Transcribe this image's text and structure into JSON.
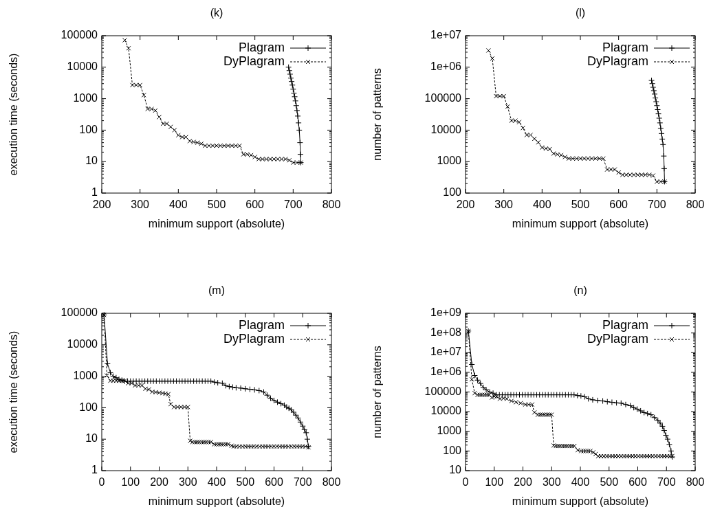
{
  "chart_data": [
    {
      "type": "line",
      "title": "(k)",
      "xlabel": "minimum support (absolute)",
      "ylabel": "execution time (seconds)",
      "xlim": [
        200,
        800
      ],
      "xticks": [
        200,
        300,
        400,
        500,
        600,
        700,
        800
      ],
      "ylim": [
        1,
        100000
      ],
      "yticks": [
        1,
        10,
        100,
        1000,
        10000,
        100000
      ],
      "log": "y",
      "legend": "top right",
      "marker": "cross",
      "series": [
        {
          "name": "Plagram",
          "color": "#000000",
          "line_style": "solid",
          "x": [
            688,
            690,
            692,
            694,
            696,
            698,
            700,
            702,
            704,
            706,
            708,
            710,
            712,
            714,
            716,
            718,
            719,
            720
          ],
          "values": [
            10000,
            7800,
            6000,
            4500,
            3500,
            2700,
            2000,
            1500,
            1150,
            850,
            600,
            420,
            280,
            170,
            100,
            40,
            17,
            9.3
          ]
        },
        {
          "name": "DyPlagram",
          "color": "#000000",
          "line_style": "dashed",
          "x": [
            260,
            270,
            280,
            290,
            300,
            310,
            320,
            330,
            340,
            350,
            360,
            370,
            380,
            390,
            400,
            410,
            420,
            430,
            440,
            450,
            460,
            470,
            480,
            490,
            500,
            510,
            520,
            530,
            540,
            550,
            560,
            570,
            580,
            590,
            600,
            610,
            620,
            630,
            640,
            650,
            660,
            670,
            680,
            690,
            700,
            710,
            720
          ],
          "values": [
            72000,
            40000,
            2700,
            2700,
            2700,
            1300,
            470,
            470,
            420,
            260,
            160,
            160,
            127,
            100,
            69,
            60,
            60,
            45,
            42,
            40,
            37,
            32,
            32,
            32,
            32,
            32,
            32,
            32,
            32,
            32,
            32,
            17,
            17,
            16,
            14,
            12,
            12,
            12,
            12,
            12,
            12,
            12,
            12,
            11,
            9.3,
            9.3,
            9.3
          ]
        }
      ]
    },
    {
      "type": "line",
      "title": "(l)",
      "xlabel": "minimum support (absolute)",
      "ylabel": "number of patterns",
      "xlim": [
        200,
        800
      ],
      "xticks": [
        200,
        300,
        400,
        500,
        600,
        700,
        800
      ],
      "ylim": [
        100,
        10000000
      ],
      "yticks": [
        100,
        1000,
        10000,
        100000,
        {
          "value": 1000000,
          "label": "1e+06"
        },
        {
          "value": 10000000,
          "label": "1e+07"
        }
      ],
      "log": "y",
      "legend": "top right",
      "marker": "cross",
      "series": [
        {
          "name": "Plagram",
          "color": "#000000",
          "line_style": "solid",
          "x": [
            686,
            688,
            690,
            692,
            694,
            696,
            698,
            700,
            702,
            704,
            706,
            708,
            710,
            712,
            714,
            716,
            718,
            719,
            720
          ],
          "values": [
            380000,
            300000,
            230000,
            180000,
            140000,
            105000,
            80000,
            60000,
            45000,
            33000,
            24000,
            17000,
            11500,
            7800,
            5200,
            3500,
            1500,
            600,
            230
          ]
        },
        {
          "name": "DyPlagram",
          "color": "#000000",
          "line_style": "dashed",
          "x": [
            260,
            270,
            280,
            290,
            300,
            310,
            320,
            330,
            340,
            350,
            360,
            370,
            380,
            390,
            400,
            410,
            420,
            430,
            440,
            450,
            460,
            470,
            480,
            490,
            500,
            510,
            520,
            530,
            540,
            550,
            560,
            570,
            580,
            590,
            600,
            610,
            620,
            630,
            640,
            650,
            660,
            670,
            680,
            690,
            700,
            710,
            720
          ],
          "values": [
            3400000,
            1900000,
            120000,
            120000,
            120000,
            56000,
            20000,
            20000,
            18000,
            11700,
            7000,
            7000,
            5300,
            4100,
            2800,
            2600,
            2500,
            1800,
            1700,
            1600,
            1400,
            1250,
            1250,
            1250,
            1250,
            1250,
            1250,
            1250,
            1250,
            1250,
            1250,
            560,
            560,
            560,
            450,
            380,
            380,
            380,
            380,
            380,
            380,
            380,
            380,
            360,
            230,
            230,
            230
          ]
        }
      ]
    },
    {
      "type": "line",
      "title": "(m)",
      "xlabel": "minimum support (absolute)",
      "ylabel": "execution time (seconds)",
      "xlim": [
        0,
        800
      ],
      "xticks": [
        0,
        100,
        200,
        300,
        400,
        500,
        600,
        700,
        800
      ],
      "ylim": [
        1,
        100000
      ],
      "yticks": [
        1,
        10,
        100,
        1000,
        10000,
        100000
      ],
      "log": "y",
      "legend": "top right",
      "marker": "cross",
      "series": [
        {
          "name": "Plagram",
          "color": "#000000",
          "line_style": "solid",
          "x": [
            8,
            20,
            30,
            40,
            50,
            60,
            70,
            80,
            90,
            100,
            110,
            120,
            130,
            140,
            150,
            160,
            170,
            180,
            190,
            200,
            210,
            220,
            230,
            240,
            250,
            260,
            270,
            280,
            290,
            300,
            310,
            320,
            330,
            340,
            350,
            360,
            370,
            380,
            392,
            404,
            420,
            432,
            444,
            456,
            468,
            484,
            500,
            516,
            532,
            548,
            564,
            576,
            588,
            600,
            612,
            624,
            636,
            644,
            652,
            660,
            668,
            676,
            684,
            692,
            700,
            706,
            712,
            716,
            720
          ],
          "values": [
            89000,
            2500,
            1300,
            1000,
            900,
            800,
            750,
            700,
            700,
            700,
            700,
            700,
            700,
            700,
            700,
            700,
            700,
            700,
            700,
            700,
            700,
            700,
            700,
            700,
            700,
            700,
            700,
            700,
            700,
            700,
            700,
            700,
            700,
            700,
            700,
            700,
            700,
            700,
            650,
            620,
            600,
            500,
            470,
            450,
            430,
            420,
            400,
            385,
            370,
            350,
            315,
            250,
            200,
            170,
            150,
            135,
            120,
            105,
            96,
            85,
            72,
            58,
            47,
            35,
            26,
            20,
            16,
            10,
            5.9
          ]
        },
        {
          "name": "DyPlagram",
          "color": "#000000",
          "line_style": "dashed",
          "x": [
            8,
            18,
            30,
            40,
            50,
            60,
            70,
            80,
            92,
            104,
            116,
            128,
            140,
            152,
            164,
            176,
            188,
            200,
            212,
            222,
            232,
            240,
            252,
            264,
            276,
            288,
            300,
            308,
            316,
            324,
            332,
            340,
            348,
            356,
            364,
            372,
            380,
            392,
            400,
            408,
            416,
            424,
            432,
            440,
            452,
            460,
            470,
            480,
            490,
            500,
            510,
            520,
            530,
            540,
            550,
            560,
            570,
            580,
            590,
            600,
            610,
            620,
            630,
            640,
            650,
            660,
            670,
            680,
            690,
            700,
            710,
            720
          ],
          "values": [
            89000,
            1050,
            720,
            720,
            720,
            720,
            720,
            720,
            600,
            600,
            510,
            510,
            510,
            400,
            380,
            320,
            310,
            300,
            290,
            280,
            270,
            130,
            105,
            105,
            105,
            105,
            105,
            8.9,
            8.1,
            8.1,
            8.1,
            8.1,
            8.1,
            8.1,
            8.1,
            8.1,
            8.1,
            6.9,
            6.9,
            6.9,
            6.9,
            6.9,
            6.9,
            6.9,
            6.2,
            5.9,
            5.9,
            5.9,
            5.9,
            5.9,
            5.9,
            5.9,
            5.9,
            5.9,
            5.9,
            5.9,
            5.9,
            5.9,
            5.9,
            5.9,
            5.9,
            5.9,
            5.9,
            5.9,
            5.9,
            5.9,
            5.9,
            5.9,
            5.9,
            5.9,
            5.9,
            5.5
          ]
        }
      ]
    },
    {
      "type": "line",
      "title": "(n)",
      "xlabel": "minimum support (absolute)",
      "ylabel": "number of patterns",
      "xlim": [
        0,
        800
      ],
      "xticks": [
        0,
        100,
        200,
        300,
        400,
        500,
        600,
        700,
        800
      ],
      "ylim": [
        10,
        1000000000
      ],
      "yticks": [
        10,
        100,
        1000,
        10000,
        100000,
        {
          "value": 1000000,
          "label": "1e+06"
        },
        {
          "value": 10000000,
          "label": "1e+07"
        },
        {
          "value": 100000000,
          "label": "1e+08"
        },
        {
          "value": 1000000000,
          "label": "1e+09"
        }
      ],
      "log": "y",
      "legend": "top right",
      "marker": "cross",
      "series": [
        {
          "name": "Plagram",
          "color": "#000000",
          "line_style": "solid",
          "x": [
            10,
            22,
            32,
            42,
            52,
            62,
            72,
            84,
            96,
            108,
            118,
            128,
            138,
            148,
            158,
            168,
            178,
            188,
            198,
            208,
            218,
            228,
            238,
            248,
            258,
            268,
            278,
            288,
            298,
            308,
            318,
            328,
            338,
            348,
            358,
            368,
            378,
            390,
            402,
            415,
            428,
            443,
            460,
            478,
            494,
            510,
            526,
            542,
            558,
            574,
            586,
            598,
            610,
            622,
            634,
            646,
            658,
            670,
            678,
            686,
            692,
            698,
            704,
            710,
            716,
            720
          ],
          "values": [
            125000000,
            2500000,
            690000,
            400000,
            270000,
            170000,
            130000,
            100000,
            87000,
            72000,
            72000,
            72000,
            72000,
            72000,
            72000,
            72000,
            72000,
            72000,
            72000,
            72000,
            72000,
            72000,
            72000,
            72000,
            72000,
            72000,
            72000,
            72000,
            72000,
            72000,
            72000,
            72000,
            72000,
            72000,
            72000,
            72000,
            72000,
            66000,
            63000,
            57000,
            45000,
            40000,
            37000,
            35000,
            32000,
            30000,
            28000,
            27000,
            23000,
            20000,
            16000,
            13500,
            11000,
            9000,
            8000,
            7000,
            5000,
            3600,
            2600,
            1800,
            1100,
            630,
            400,
            215,
            100,
            50
          ]
        },
        {
          "name": "DyPlagram",
          "color": "#000000",
          "line_style": "dashed",
          "x": [
            10,
            22,
            32,
            42,
            50,
            58,
            66,
            74,
            82,
            92,
            100,
            108,
            120,
            132,
            144,
            160,
            176,
            192,
            208,
            220,
            232,
            240,
            252,
            260,
            268,
            276,
            284,
            292,
            300,
            307,
            315,
            323,
            331,
            339,
            347,
            355,
            363,
            371,
            379,
            391,
            403,
            411,
            419,
            427,
            435,
            445,
            453,
            462,
            472,
            482,
            492,
            502,
            512,
            522,
            532,
            542,
            552,
            562,
            572,
            582,
            592,
            602,
            612,
            622,
            632,
            642,
            652,
            662,
            672,
            682,
            692,
            702,
            712,
            720
          ],
          "values": [
            125000000,
            440000,
            87000,
            71000,
            71000,
            71000,
            71000,
            71000,
            71000,
            52000,
            60000,
            58000,
            45000,
            48000,
            45000,
            35000,
            30000,
            27000,
            23000,
            23000,
            23000,
            9100,
            7000,
            7000,
            7000,
            7000,
            7000,
            7000,
            7000,
            190,
            180,
            180,
            180,
            180,
            180,
            180,
            180,
            180,
            180,
            110,
            100,
            100,
            100,
            100,
            100,
            85,
            70,
            54,
            54,
            54,
            54,
            54,
            54,
            54,
            54,
            54,
            54,
            54,
            54,
            54,
            54,
            54,
            54,
            54,
            54,
            54,
            54,
            54,
            54,
            54,
            54,
            54,
            54,
            55
          ]
        }
      ]
    }
  ]
}
